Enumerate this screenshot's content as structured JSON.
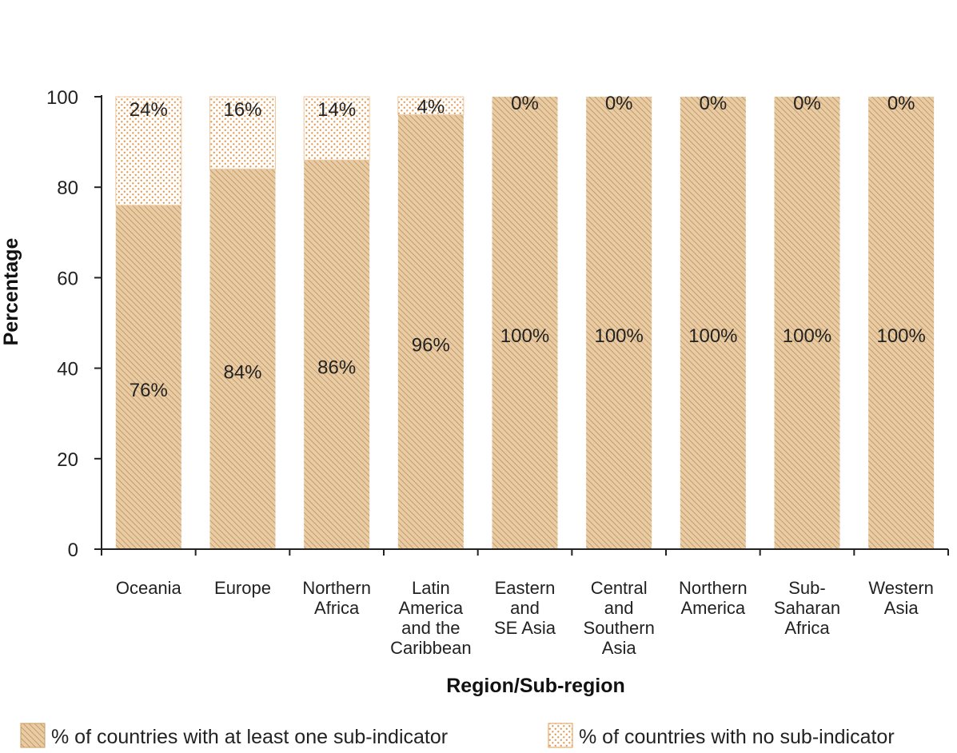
{
  "chart_data": {
    "type": "bar",
    "stacked": true,
    "categories": [
      "Oceania",
      "Europe",
      "Northern Africa",
      "Latin America and the Caribbean",
      "Eastern and SE Asia",
      "Central and Southern Asia",
      "Northern America",
      "Sub-Saharan Africa",
      "Western Asia"
    ],
    "category_lines": [
      [
        "Oceania"
      ],
      [
        "Europe"
      ],
      [
        "Northern",
        "Africa"
      ],
      [
        "Latin",
        "America",
        "and the",
        "Caribbean"
      ],
      [
        "Eastern",
        "and",
        "SE Asia"
      ],
      [
        "Central",
        "and",
        "Southern",
        "Asia"
      ],
      [
        "Northern",
        "America"
      ],
      [
        "Sub-",
        "Saharan",
        "Africa"
      ],
      [
        "Western",
        "Asia"
      ]
    ],
    "series": [
      {
        "name": "% of countries with at least one sub-indicator",
        "values": [
          76,
          84,
          86,
          96,
          100,
          100,
          100,
          100,
          100
        ],
        "labels": [
          "76%",
          "84%",
          "86%",
          "96%",
          "100%",
          "100%",
          "100%",
          "100%",
          "100%"
        ],
        "pattern": "hatch",
        "color": "#d9b58a"
      },
      {
        "name": "% of countries with no sub-indicator",
        "values": [
          24,
          16,
          14,
          4,
          0,
          0,
          0,
          0,
          0
        ],
        "labels": [
          "24%",
          "16%",
          "14%",
          "4%",
          "0%",
          "0%",
          "0%",
          "0%",
          "0%"
        ],
        "pattern": "dots",
        "color": "#e6a15e"
      }
    ],
    "xlabel": "Region/Sub-region",
    "ylabel": "Percentage",
    "ylim": [
      0,
      100
    ],
    "yticks": [
      0,
      20,
      40,
      60,
      80,
      100
    ],
    "grid": false,
    "legend": "bottom"
  }
}
